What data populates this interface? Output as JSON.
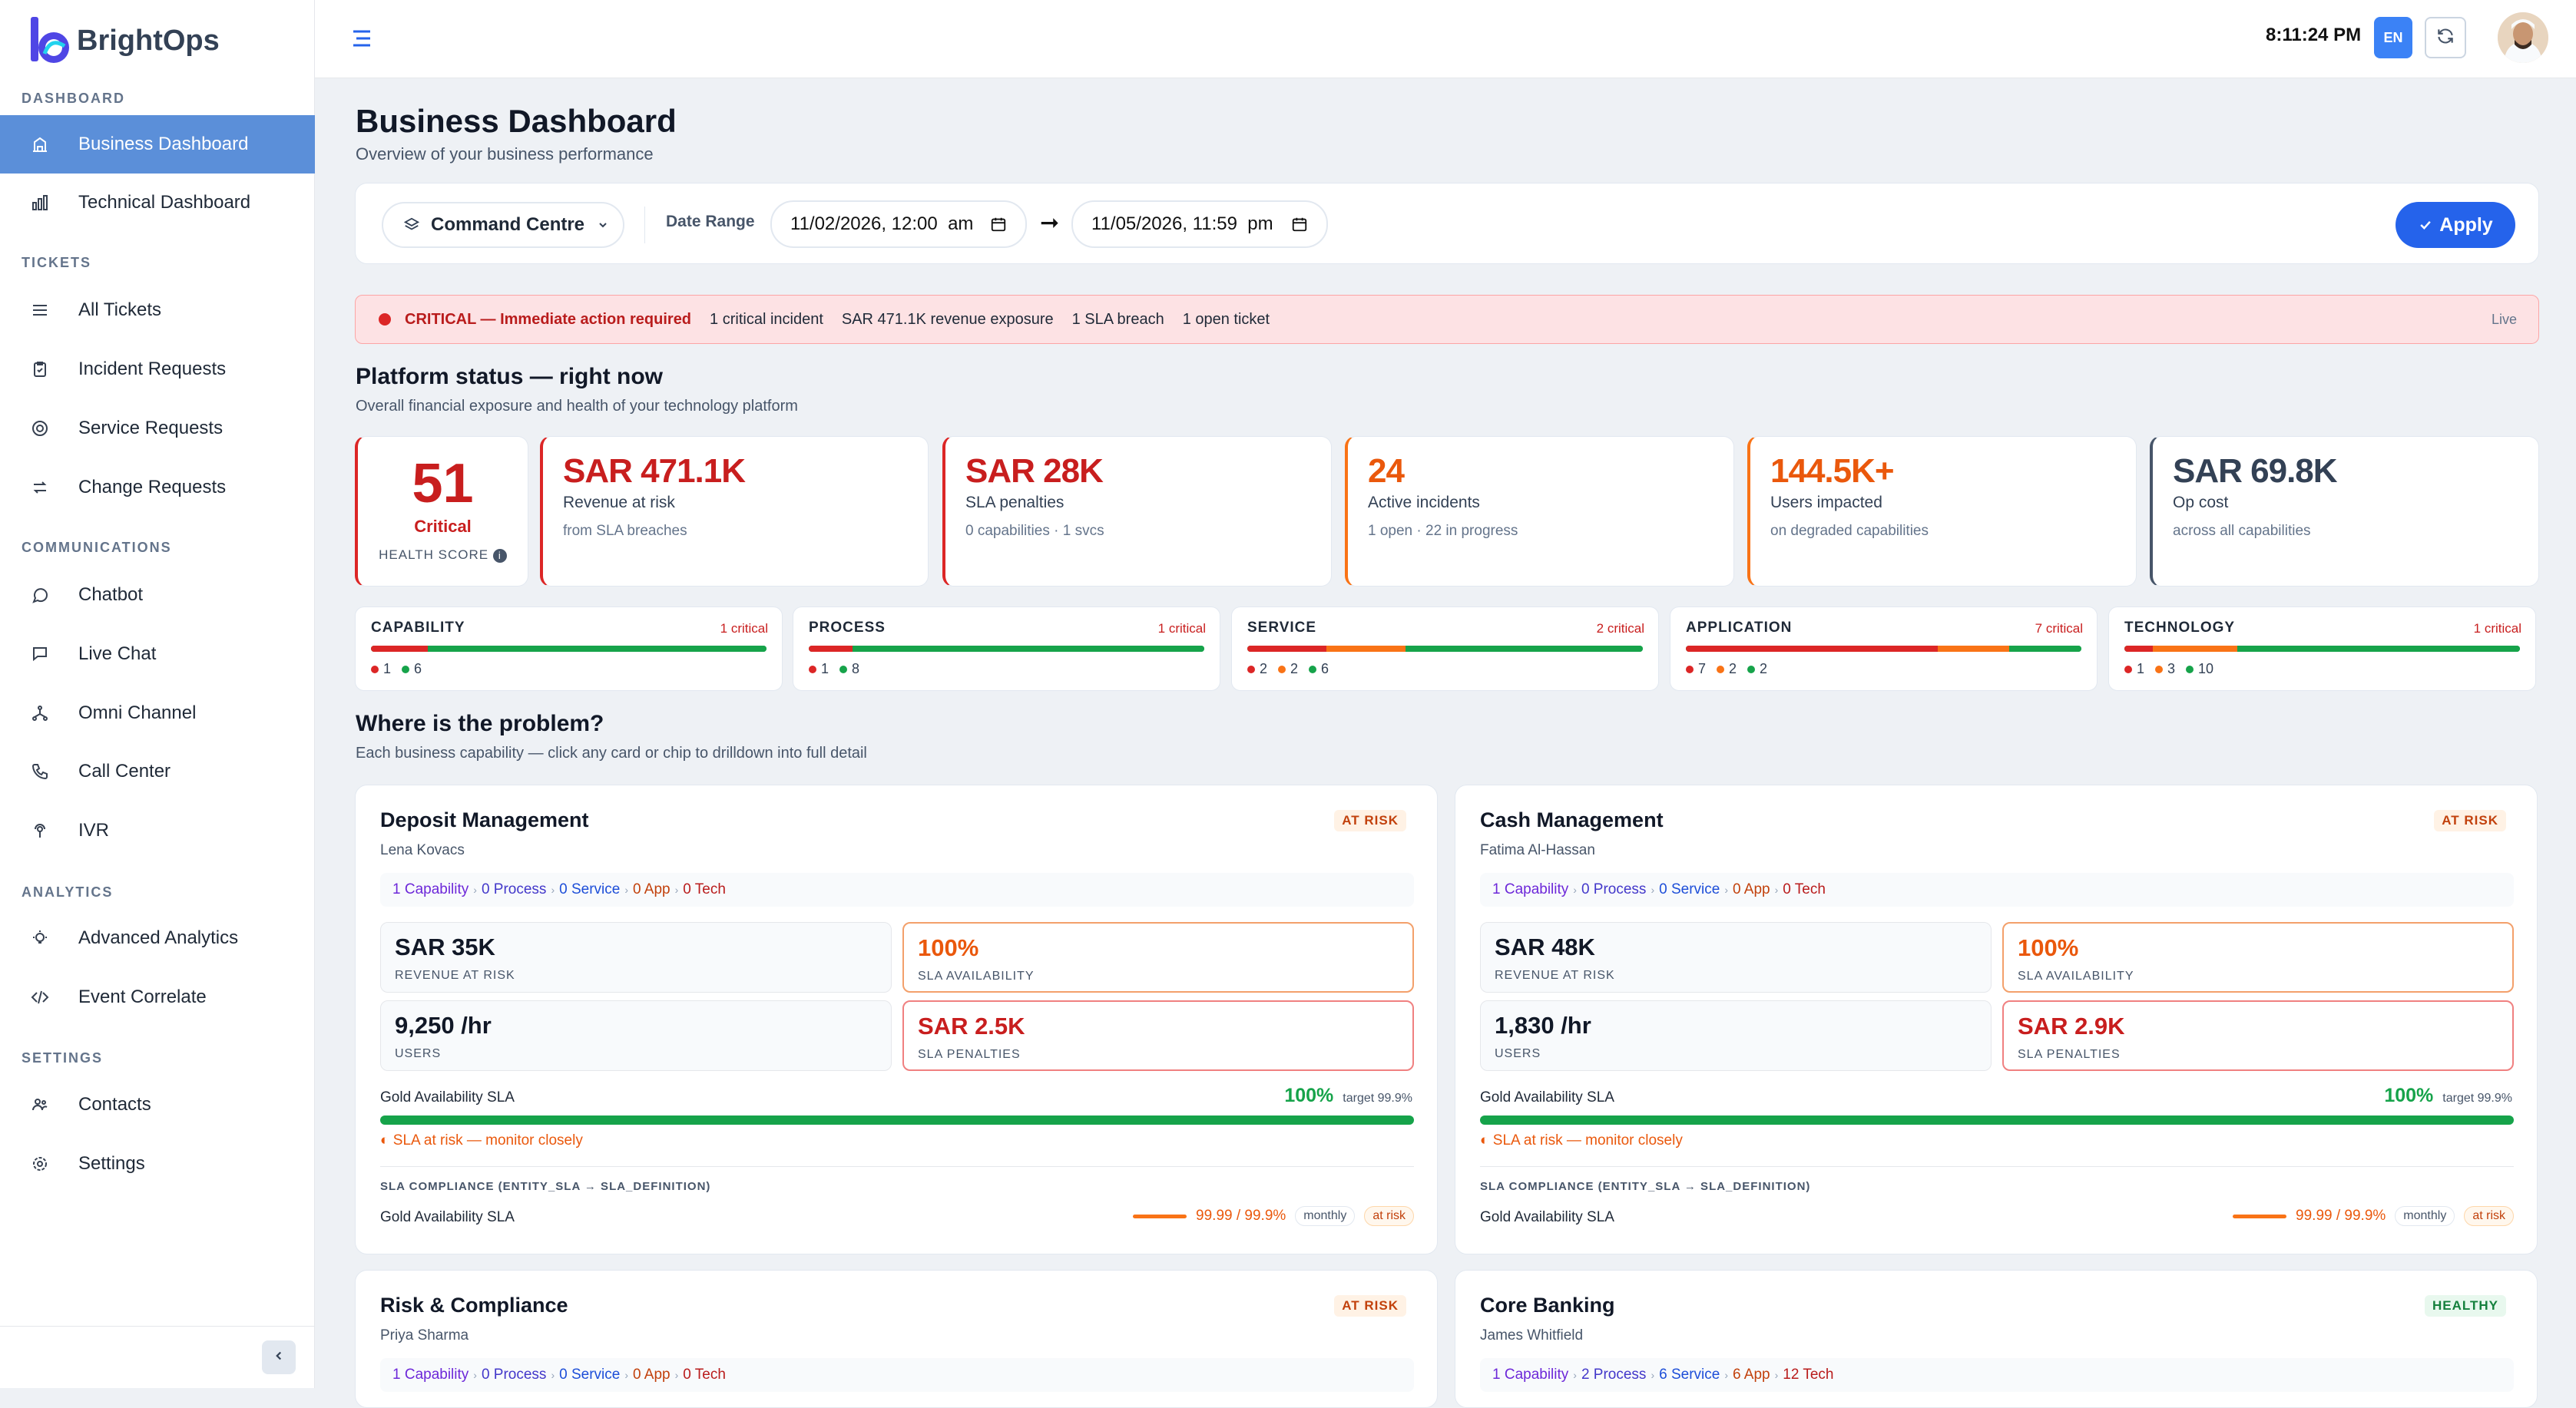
{
  "brand": {
    "name": "BrightOps"
  },
  "sidebar": {
    "sections": [
      {
        "title": "DASHBOARD",
        "items": [
          {
            "label": "Business Dashboard",
            "icon": "building-icon",
            "active": true
          },
          {
            "label": "Technical Dashboard",
            "icon": "bar-chart-icon"
          }
        ]
      },
      {
        "title": "TICKETS",
        "items": [
          {
            "label": "All Tickets",
            "icon": "list-icon"
          },
          {
            "label": "Incident Requests",
            "icon": "clipboard-icon"
          },
          {
            "label": "Service Requests",
            "icon": "lifebuoy-icon"
          },
          {
            "label": "Change Requests",
            "icon": "swap-icon"
          }
        ]
      },
      {
        "title": "COMMUNICATIONS",
        "items": [
          {
            "label": "Chatbot",
            "icon": "chat-bubble-icon"
          },
          {
            "label": "Live Chat",
            "icon": "chat-icon"
          },
          {
            "label": "Omni Channel",
            "icon": "network-icon"
          },
          {
            "label": "Call Center",
            "icon": "phone-icon"
          },
          {
            "label": "IVR",
            "icon": "voice-icon"
          }
        ]
      },
      {
        "title": "ANALYTICS",
        "items": [
          {
            "label": "Advanced Analytics",
            "icon": "bulb-icon"
          },
          {
            "label": "Event Correlate",
            "icon": "code-icon"
          }
        ]
      },
      {
        "title": "SETTINGS",
        "items": [
          {
            "label": "Contacts",
            "icon": "contacts-icon"
          },
          {
            "label": "Settings",
            "icon": "gear-icon"
          }
        ]
      }
    ]
  },
  "topbar": {
    "time": "8:11:24 PM",
    "lang": "EN"
  },
  "page": {
    "title": "Business Dashboard",
    "subtitle": "Overview of your business performance"
  },
  "filter": {
    "scope": "Command Centre",
    "date_range_label": "Date Range",
    "from": "11/02/2026, 12:00  am",
    "to": "11/05/2026, 11:59  pm",
    "apply": "Apply"
  },
  "alert": {
    "level": "CRITICAL — Immediate action required",
    "items": [
      "1 critical incident",
      "SAR 471.1K revenue exposure",
      "1 SLA breach",
      "1 open ticket"
    ],
    "live": "Live"
  },
  "platform": {
    "title": "Platform status — right now",
    "subtitle": "Overall financial exposure and health of your technology platform",
    "health": {
      "score": "51",
      "status": "Critical",
      "label": "HEALTH SCORE"
    },
    "kpis": [
      {
        "value": "SAR 471.1K",
        "label": "Revenue at risk",
        "sub": "from SLA breaches",
        "color": "#c81e1e"
      },
      {
        "value": "SAR 28K",
        "label": "SLA penalties",
        "sub": "0 capabilities · 1 svcs",
        "color": "#c81e1e"
      },
      {
        "value": "24",
        "label": "Active incidents",
        "sub": "1 open · 22 in progress",
        "color": "#ea580c"
      },
      {
        "value": "144.5K+",
        "label": "Users impacted",
        "sub": "on degraded capabilities",
        "color": "#ea580c"
      },
      {
        "value": "SAR 69.8K",
        "label": "Op cost",
        "sub": "across all capabilities",
        "color": "#334155"
      }
    ],
    "layers": [
      {
        "name": "CAPABILITY",
        "critical": "1 critical",
        "red": 1,
        "orange": 0,
        "green": 6
      },
      {
        "name": "PROCESS",
        "critical": "1 critical",
        "red": 1,
        "orange": 0,
        "green": 8
      },
      {
        "name": "SERVICE",
        "critical": "2 critical",
        "red": 2,
        "orange": 2,
        "green": 6
      },
      {
        "name": "APPLICATION",
        "critical": "7 critical",
        "red": 7,
        "orange": 2,
        "green": 2
      },
      {
        "name": "TECHNOLOGY",
        "critical": "1 critical",
        "red": 1,
        "orange": 3,
        "green": 10
      }
    ]
  },
  "problems": {
    "title": "Where is the problem?",
    "subtitle": "Each business capability — click any card or chip to drilldown into full detail",
    "cards": [
      {
        "title": "Deposit Management",
        "owner": "Lena Kovacs",
        "badge": "AT RISK",
        "chips": [
          "1 Capability",
          "0 Process",
          "0 Service",
          "0 App",
          "0 Tech"
        ],
        "revenue": "SAR 35K",
        "revenue_label": "REVENUE AT RISK",
        "availability": "100%",
        "availability_label": "SLA AVAILABILITY",
        "users": "9,250 /hr",
        "users_label": "USERS",
        "penalties": "SAR 2.5K",
        "penalties_label": "SLA PENALTIES",
        "sla_name": "Gold Availability SLA",
        "sla_pct": "100%",
        "sla_target": "target 99.9%",
        "warn": "SLA at risk — monitor closely",
        "compliance": "SLA COMPLIANCE (ENTITY_SLA → SLA_DEFINITION)",
        "comp_name": "Gold Availability SLA",
        "comp_val": "99.99 / 99.9%",
        "comp_period": "monthly",
        "comp_status": "at risk"
      },
      {
        "title": "Cash Management",
        "owner": "Fatima Al-Hassan",
        "badge": "AT RISK",
        "chips": [
          "1 Capability",
          "0 Process",
          "0 Service",
          "0 App",
          "0 Tech"
        ],
        "revenue": "SAR 48K",
        "revenue_label": "REVENUE AT RISK",
        "availability": "100%",
        "availability_label": "SLA AVAILABILITY",
        "users": "1,830 /hr",
        "users_label": "USERS",
        "penalties": "SAR 2.9K",
        "penalties_label": "SLA PENALTIES",
        "sla_name": "Gold Availability SLA",
        "sla_pct": "100%",
        "sla_target": "target 99.9%",
        "warn": "SLA at risk — monitor closely",
        "compliance": "SLA COMPLIANCE (ENTITY_SLA → SLA_DEFINITION)",
        "comp_name": "Gold Availability SLA",
        "comp_val": "99.99 / 99.9%",
        "comp_period": "monthly",
        "comp_status": "at risk"
      },
      {
        "title": "Risk & Compliance",
        "owner": "Priya Sharma",
        "badge": "AT RISK",
        "chips": [
          "1 Capability",
          "0 Process",
          "0 Service",
          "0 App",
          "0 Tech"
        ]
      },
      {
        "title": "Core Banking",
        "owner": "James Whitfield",
        "badge": "HEALTHY",
        "chips": [
          "1 Capability",
          "2 Process",
          "6 Service",
          "6 App",
          "12 Tech"
        ]
      }
    ]
  }
}
